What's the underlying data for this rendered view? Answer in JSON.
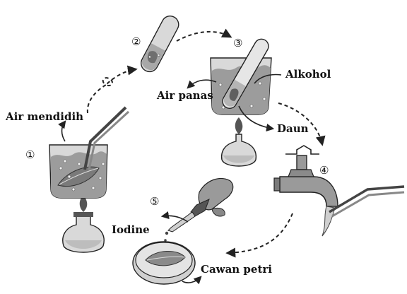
{
  "labels": {
    "air_mendidih": "Air mendidih",
    "air_panas": "Air panas",
    "alkohol": "Alkohol",
    "daun": "Daun",
    "iodine": "Iodine",
    "cawan_petri": "Cawan petri"
  },
  "steps": [
    "①",
    "②",
    "③",
    "④",
    "⑤"
  ],
  "icons": [
    "beaker-on-burner-icon",
    "test-tube-icon",
    "tap-icon",
    "dropper-icon",
    "petri-dish-icon",
    "leaf-icon",
    "forceps-icon"
  ],
  "colors": {
    "line": "#222222",
    "water": "#9c9c9c",
    "glass": "#d9d9d9"
  }
}
